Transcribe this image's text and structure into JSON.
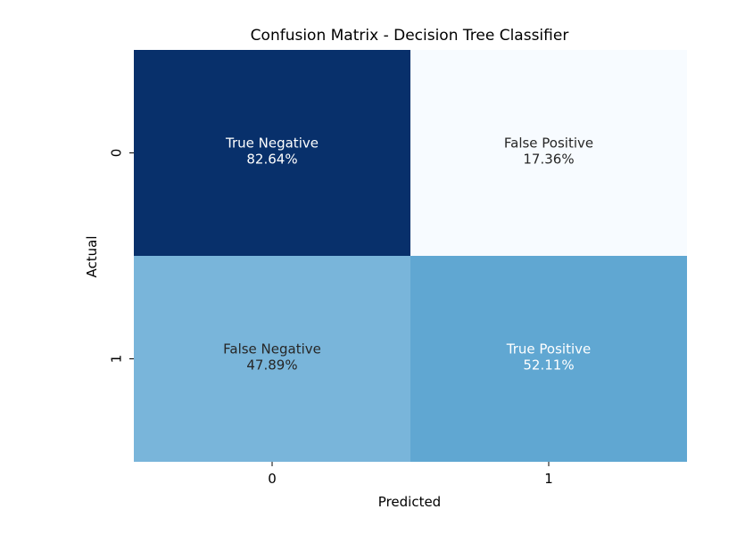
{
  "chart_data": {
    "type": "heatmap",
    "title": "Confusion Matrix - Decision Tree Classifier",
    "xlabel": "Predicted",
    "ylabel": "Actual",
    "x_categories": [
      "0",
      "1"
    ],
    "y_categories": [
      "0",
      "1"
    ],
    "cells": [
      {
        "row": 0,
        "col": 0,
        "label": "True Negative",
        "value_text": "82.64%",
        "value": 82.64,
        "color": "#08306b",
        "text_color": "#ffffff"
      },
      {
        "row": 0,
        "col": 1,
        "label": "False Positive",
        "value_text": "17.36%",
        "value": 17.36,
        "color": "#f7fbff",
        "text_color": "#262626"
      },
      {
        "row": 1,
        "col": 0,
        "label": "False Negative",
        "value_text": "47.89%",
        "value": 47.89,
        "color": "#79b5da",
        "text_color": "#262626"
      },
      {
        "row": 1,
        "col": 1,
        "label": "True Positive",
        "value_text": "52.11%",
        "value": 52.11,
        "color": "#60a7d2",
        "text_color": "#ffffff"
      }
    ],
    "colormap": "Blues",
    "colorbar": false,
    "grid": false,
    "legend": "none"
  }
}
